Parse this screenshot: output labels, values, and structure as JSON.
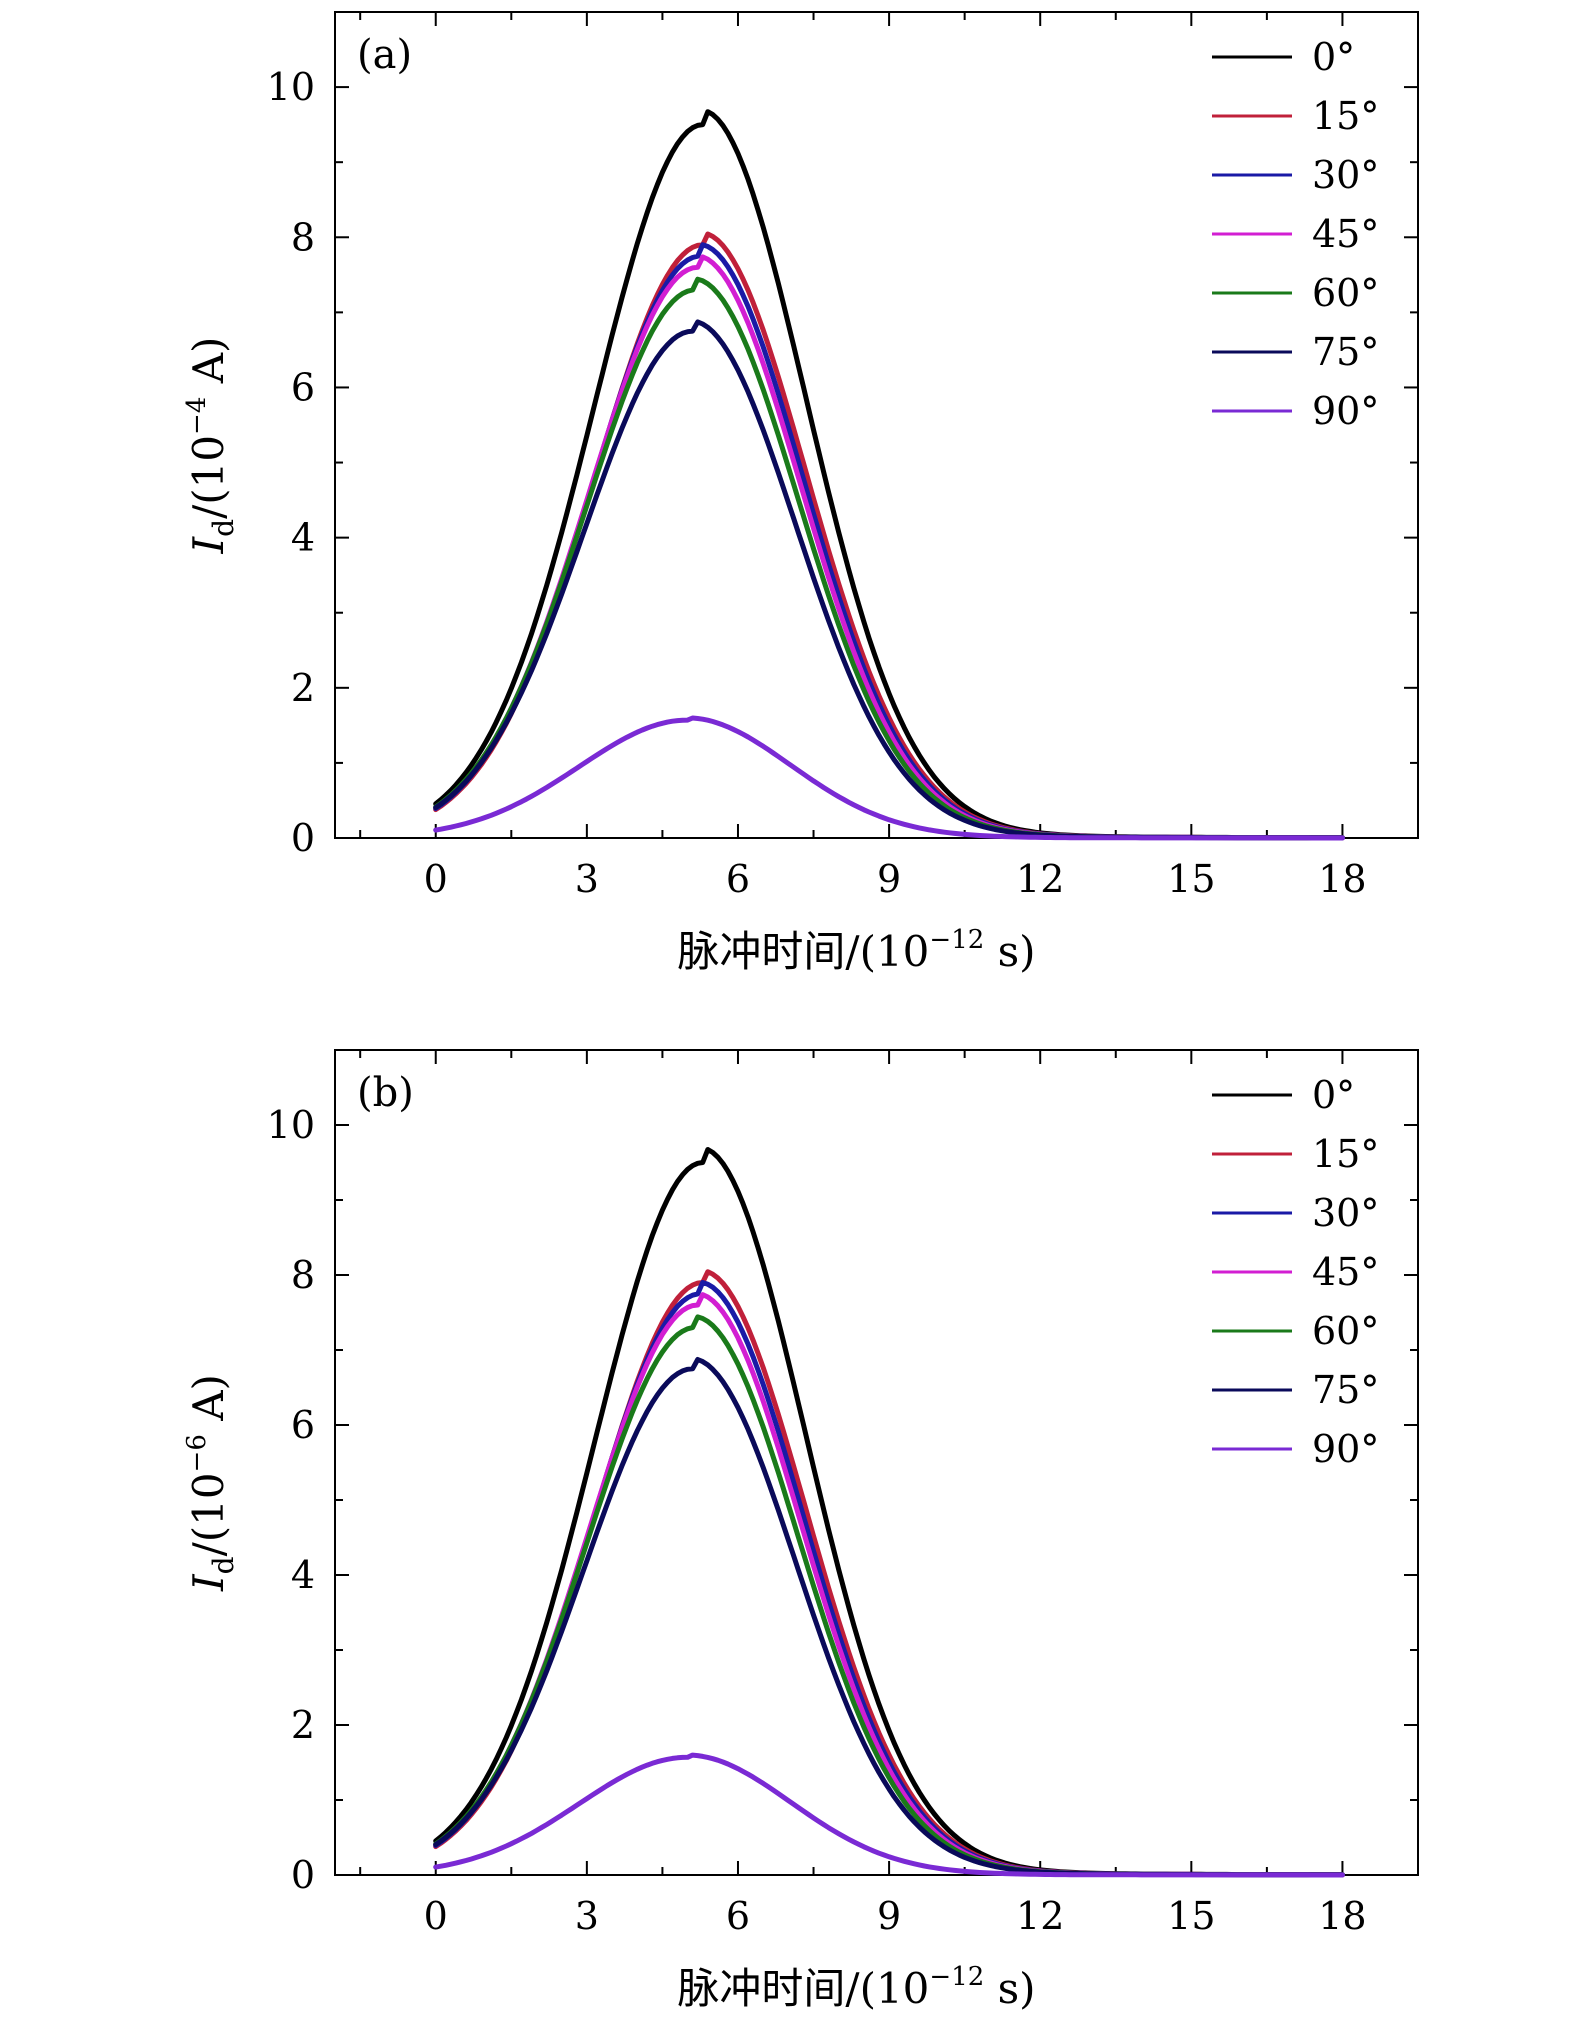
{
  "chart_data": [
    {
      "type": "line",
      "panel_label": "(a)",
      "xlabel": "脉冲时间/(10",
      "xlabel_exp": "−12",
      "xlabel_suffix": " s)",
      "ylabel_symbol": "I",
      "ylabel_sub": "d",
      "ylabel_rest": "/(10",
      "ylabel_exp": "−4",
      "ylabel_unit": " A)",
      "xlim": [
        -2,
        19.5
      ],
      "ylim": [
        0,
        11
      ],
      "xticks": [
        0,
        3,
        6,
        9,
        12,
        15,
        18
      ],
      "yticks": [
        0,
        2,
        4,
        6,
        8,
        10
      ],
      "legend_position": "top-right",
      "series": [
        {
          "name": "0°",
          "color": "#000000",
          "peak": 9.5,
          "peak_x": 5.3
        },
        {
          "name": "15°",
          "color": "#c0203a",
          "peak": 7.9,
          "peak_x": 5.3
        },
        {
          "name": "30°",
          "color": "#1a1aa6",
          "peak": 7.75,
          "peak_x": 5.25
        },
        {
          "name": "45°",
          "color": "#d21ed2",
          "peak": 7.6,
          "peak_x": 5.2
        },
        {
          "name": "60°",
          "color": "#1a7a1a",
          "peak": 7.3,
          "peak_x": 5.15
        },
        {
          "name": "75°",
          "color": "#0a0a5a",
          "peak": 6.75,
          "peak_x": 5.1
        },
        {
          "name": "90°",
          "color": "#7a2ad4",
          "peak": 1.57,
          "peak_x": 5.0
        }
      ]
    },
    {
      "type": "line",
      "panel_label": "(b)",
      "xlabel": "脉冲时间/(10",
      "xlabel_exp": "−12",
      "xlabel_suffix": " s)",
      "ylabel_symbol": "I",
      "ylabel_sub": "d",
      "ylabel_rest": "/(10",
      "ylabel_exp": "−6",
      "ylabel_unit": " A)",
      "xlim": [
        -2,
        19.5
      ],
      "ylim": [
        0,
        11
      ],
      "xticks": [
        0,
        3,
        6,
        9,
        12,
        15,
        18
      ],
      "yticks": [
        0,
        2,
        4,
        6,
        8,
        10
      ],
      "legend_position": "top-right",
      "series": [
        {
          "name": "0°",
          "color": "#000000",
          "peak": 9.5,
          "peak_x": 5.3
        },
        {
          "name": "15°",
          "color": "#c0203a",
          "peak": 7.9,
          "peak_x": 5.3
        },
        {
          "name": "30°",
          "color": "#1a1aa6",
          "peak": 7.75,
          "peak_x": 5.25
        },
        {
          "name": "45°",
          "color": "#d21ed2",
          "peak": 7.6,
          "peak_x": 5.2
        },
        {
          "name": "60°",
          "color": "#1a7a1a",
          "peak": 7.3,
          "peak_x": 5.15
        },
        {
          "name": "75°",
          "color": "#0a0a5a",
          "peak": 6.75,
          "peak_x": 5.1
        },
        {
          "name": "90°",
          "color": "#7a2ad4",
          "peak": 1.57,
          "peak_x": 5.0
        }
      ]
    }
  ]
}
